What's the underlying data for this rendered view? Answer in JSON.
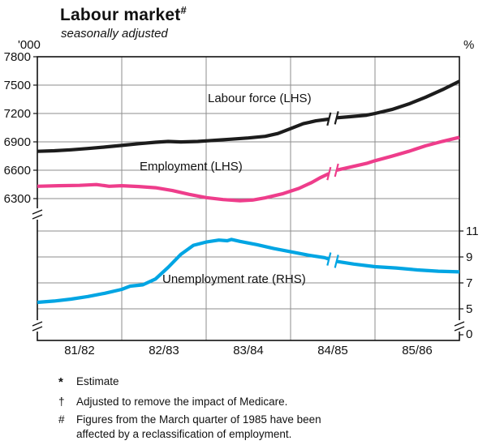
{
  "header": {
    "title": "Labour market",
    "title_marker": "#",
    "subtitle": "seasonally adjusted"
  },
  "chart_data": {
    "type": "line",
    "title": "Labour market",
    "subtitle": "seasonally adjusted",
    "x_axis": {
      "labels": [
        "81/82",
        "82/83",
        "83/84",
        "84/85",
        "85/86"
      ],
      "gridlines_at": [
        20,
        40,
        60,
        80
      ],
      "range_pct": [
        0,
        100
      ]
    },
    "left_axis": {
      "unit": "'000",
      "ticks": [
        7800,
        7500,
        7200,
        6900,
        6600,
        6300
      ],
      "range": [
        7800,
        6300
      ],
      "has_break": true
    },
    "right_axis": {
      "unit": "%",
      "ticks": [
        11,
        9,
        7,
        5
      ],
      "zero_label": "0",
      "has_break": true
    },
    "series": [
      {
        "name": "Labour force (LHS)",
        "axis": "left",
        "color": "#1c1c1c",
        "break_at_x": 70,
        "points": [
          [
            0,
            6800
          ],
          [
            4,
            6806
          ],
          [
            8,
            6816
          ],
          [
            12,
            6830
          ],
          [
            16,
            6845
          ],
          [
            20,
            6862
          ],
          [
            24,
            6880
          ],
          [
            28,
            6896
          ],
          [
            31,
            6904
          ],
          [
            34,
            6899
          ],
          [
            38,
            6904
          ],
          [
            42,
            6916
          ],
          [
            46,
            6928
          ],
          [
            50,
            6941
          ],
          [
            54,
            6958
          ],
          [
            57,
            6988
          ],
          [
            60,
            7040
          ],
          [
            63,
            7092
          ],
          [
            66,
            7122
          ],
          [
            69,
            7140
          ],
          [
            71,
            7155
          ],
          [
            74,
            7166
          ],
          [
            78,
            7182
          ],
          [
            80,
            7200
          ],
          [
            84,
            7242
          ],
          [
            88,
            7300
          ],
          [
            92,
            7372
          ],
          [
            96,
            7452
          ],
          [
            100,
            7540
          ]
        ]
      },
      {
        "name": "Employment (LHS)",
        "axis": "left",
        "color": "#ee3d8b",
        "break_at_x": 70,
        "points": [
          [
            0,
            6430
          ],
          [
            5,
            6436
          ],
          [
            10,
            6440
          ],
          [
            14,
            6448
          ],
          [
            17,
            6430
          ],
          [
            20,
            6436
          ],
          [
            24,
            6428
          ],
          [
            28,
            6415
          ],
          [
            32,
            6385
          ],
          [
            36,
            6345
          ],
          [
            40,
            6310
          ],
          [
            44,
            6290
          ],
          [
            48,
            6278
          ],
          [
            51,
            6285
          ],
          [
            54,
            6308
          ],
          [
            58,
            6350
          ],
          [
            62,
            6408
          ],
          [
            65,
            6470
          ],
          [
            67,
            6520
          ],
          [
            69,
            6562
          ],
          [
            71,
            6602
          ],
          [
            74,
            6632
          ],
          [
            78,
            6672
          ],
          [
            80,
            6700
          ],
          [
            84,
            6748
          ],
          [
            88,
            6800
          ],
          [
            92,
            6858
          ],
          [
            96,
            6905
          ],
          [
            100,
            6948
          ]
        ]
      },
      {
        "name": "Unemployment rate (RHS)",
        "axis": "right",
        "color": "#00a5e3",
        "break_at_x": 70,
        "points": [
          [
            0,
            5.5
          ],
          [
            4,
            5.6
          ],
          [
            8,
            5.75
          ],
          [
            12,
            5.95
          ],
          [
            16,
            6.2
          ],
          [
            20,
            6.5
          ],
          [
            22,
            6.75
          ],
          [
            25,
            6.85
          ],
          [
            28,
            7.3
          ],
          [
            31,
            8.2
          ],
          [
            34,
            9.2
          ],
          [
            37,
            9.9
          ],
          [
            40,
            10.15
          ],
          [
            43,
            10.3
          ],
          [
            45,
            10.25
          ],
          [
            46,
            10.35
          ],
          [
            48,
            10.2
          ],
          [
            52,
            9.95
          ],
          [
            56,
            9.65
          ],
          [
            60,
            9.4
          ],
          [
            64,
            9.15
          ],
          [
            68,
            8.95
          ],
          [
            71,
            8.65
          ],
          [
            75,
            8.45
          ],
          [
            80,
            8.25
          ],
          [
            85,
            8.15
          ],
          [
            90,
            8.0
          ],
          [
            95,
            7.9
          ],
          [
            100,
            7.85
          ]
        ]
      }
    ]
  },
  "footnotes": [
    {
      "marker": "*",
      "text": "Estimate"
    },
    {
      "marker": "†",
      "text": "Adjusted to remove the impact of Medicare."
    },
    {
      "marker": "#",
      "text": "Figures from the March quarter of 1985 have been affected by a reclassification of employment."
    }
  ]
}
